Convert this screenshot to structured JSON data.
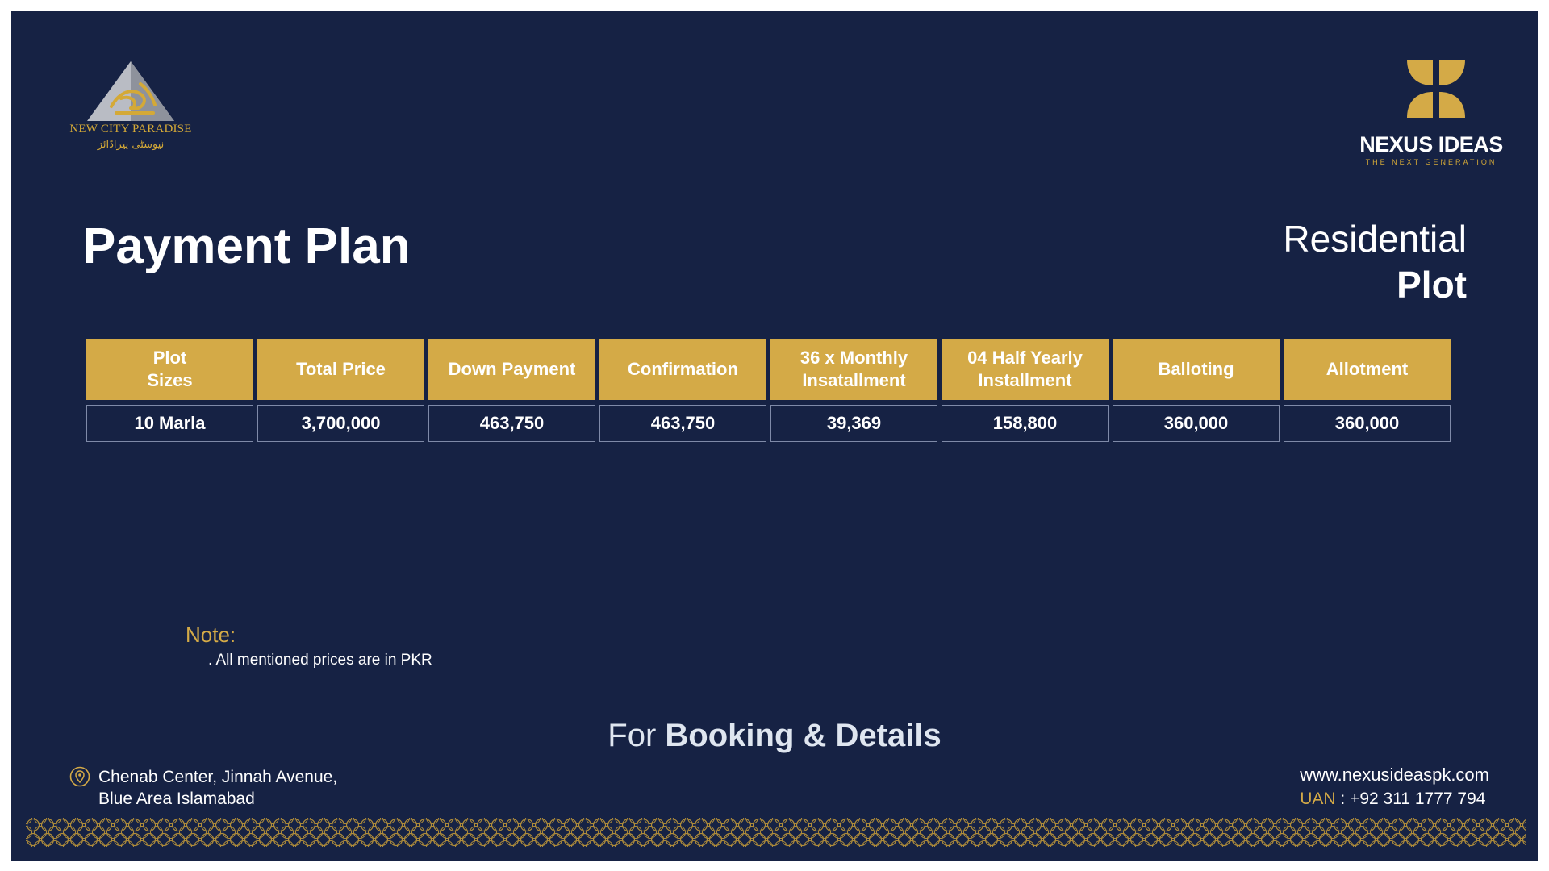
{
  "branding": {
    "left_logo_en": "NEW CITY PARADISE",
    "left_logo_ur": "نیوسٹی پیراڈائز",
    "right_logo_name": "NEXUS IDEAS",
    "right_logo_tagline": "THE NEXT GENERATION"
  },
  "heading": {
    "title": "Payment Plan",
    "subtitle_line1": "Residential",
    "subtitle_line2": "Plot"
  },
  "table": {
    "headers": [
      "Plot\nSizes",
      "Total Price",
      "Down Payment",
      "Confirmation",
      "36 x Monthly\nInsatallment",
      "04 Half Yearly\nInstallment",
      "Balloting",
      "Allotment"
    ],
    "rows": [
      [
        "10 Marla",
        "3,700,000",
        "463,750",
        "463,750",
        "39,369",
        "158,800",
        "360,000",
        "360,000"
      ]
    ]
  },
  "note": {
    "label": "Note:",
    "item": ". All mentioned prices are in PKR"
  },
  "footer": {
    "booking_prefix": "For",
    "booking_bold": "Booking & Details",
    "address_line1": "Chenab Center, Jinnah Avenue,",
    "address_line2": "Blue Area Islamabad",
    "website": "www.nexusideaspk.com",
    "uan_label": "UAN",
    "uan_number": ": +92 311 1777 794"
  },
  "colors": {
    "background": "#162244",
    "gold": "#d4aa47",
    "text": "#ffffff"
  }
}
